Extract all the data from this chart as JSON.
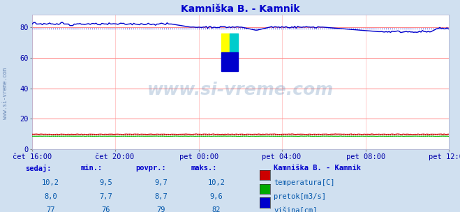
{
  "title": "Kamniška B. - Kamnik",
  "bg_color": "#d0e0f0",
  "plot_bg_color": "#ffffff",
  "grid_color_h": "#ff8888",
  "grid_color_v": "#ffcccc",
  "xlabel_ticks": [
    "čet 16:00",
    "čet 20:00",
    "pet 00:00",
    "pet 04:00",
    "pet 08:00",
    "pet 12:00"
  ],
  "yticks": [
    0,
    20,
    40,
    60,
    80
  ],
  "ylim": [
    0,
    88
  ],
  "xlim": [
    0,
    287
  ],
  "watermark_text": "www.si-vreme.com",
  "watermark_color": "#4477aa",
  "title_color": "#0000cc",
  "tick_color": "#0000aa",
  "tick_fontsize": 7.5,
  "title_fontsize": 10,
  "table_header_color": "#0000cc",
  "table_value_color": "#0055aa",
  "table_headers": [
    "sedaj:",
    "min.:",
    "povpr.:",
    "maks.:"
  ],
  "table_values": [
    [
      "10,2",
      "9,5",
      "9,7",
      "10,2"
    ],
    [
      "8,0",
      "7,7",
      "8,7",
      "9,6"
    ],
    [
      "77",
      "76",
      "79",
      "82"
    ]
  ],
  "legend_title": "Kamniška B. - Kamnik",
  "legend_items": [
    "temperatura[C]",
    "pretok[m3/s]",
    "višina[cm]"
  ],
  "legend_colors": [
    "#cc0000",
    "#00aa00",
    "#0000cc"
  ],
  "n_points": 288,
  "avg_visina": 79,
  "avg_temp": 9.7,
  "avg_pretok": 8.7
}
